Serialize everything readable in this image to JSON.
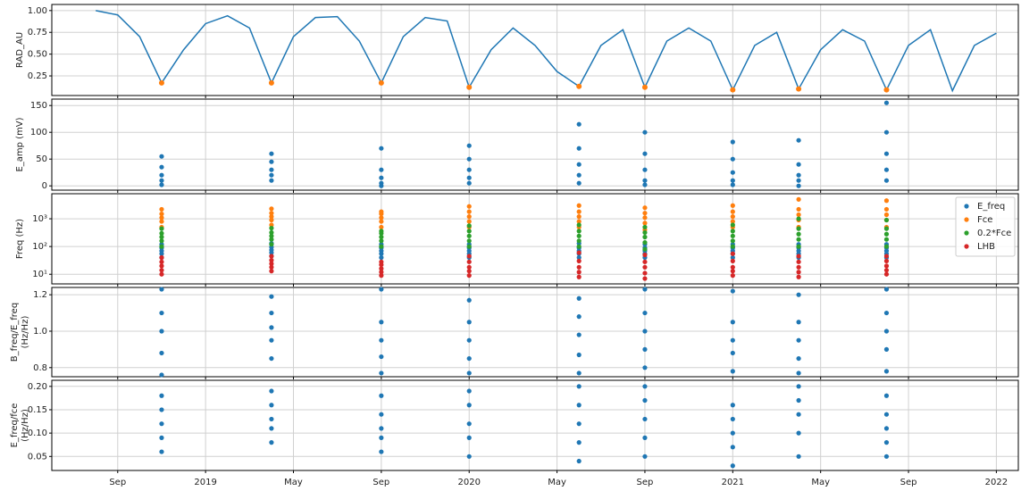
{
  "chart_data": [
    {
      "type": "line",
      "ylabel": [
        "RAD_AU"
      ],
      "x": [
        "2018-08",
        "2018-09",
        "2018-10",
        "2018-11",
        "2018-12",
        "2019-01",
        "2019-02",
        "2019-03",
        "2019-04",
        "2019-05",
        "2019-06",
        "2019-07",
        "2019-08",
        "2019-09",
        "2019-10",
        "2019-11",
        "2019-12",
        "2020-01",
        "2020-02",
        "2020-03",
        "2020-04",
        "2020-05",
        "2020-06",
        "2020-07",
        "2020-08",
        "2020-09",
        "2020-10",
        "2020-11",
        "2020-12",
        "2021-01",
        "2021-02",
        "2021-03",
        "2021-04",
        "2021-05",
        "2021-06",
        "2021-07",
        "2021-08",
        "2021-09",
        "2021-10",
        "2021-11",
        "2021-12",
        "2022-01"
      ],
      "series": [
        {
          "color": "#1f77b4",
          "values": [
            1.0,
            0.95,
            0.7,
            0.17,
            0.55,
            0.85,
            0.94,
            0.8,
            0.17,
            0.7,
            0.92,
            0.93,
            0.65,
            0.17,
            0.7,
            0.92,
            0.88,
            0.12,
            0.55,
            0.8,
            0.6,
            0.3,
            0.13,
            0.6,
            0.78,
            0.12,
            0.65,
            0.8,
            0.65,
            0.09,
            0.6,
            0.75,
            0.1,
            0.55,
            0.78,
            0.65,
            0.09,
            0.6,
            0.78,
            0.08,
            0.6,
            0.74
          ]
        }
      ],
      "highlights": {
        "color": "#ff7f0e",
        "x": [
          "2018-11",
          "2019-04",
          "2019-09",
          "2020-01",
          "2020-06",
          "2020-09",
          "2021-01",
          "2021-04",
          "2021-08"
        ],
        "values": [
          0.17,
          0.17,
          0.17,
          0.12,
          0.13,
          0.12,
          0.09,
          0.1,
          0.09
        ]
      },
      "ylim": [
        0.025,
        1.07
      ],
      "yticks": [
        0.25,
        {
          "value": 0.5,
          "label": "0.50"
        },
        0.75,
        {
          "value": 1.0,
          "label": "1.00"
        }
      ],
      "grid": true
    },
    {
      "type": "scatter",
      "ylabel": [
        "E_amp (mV)"
      ],
      "x": [
        "2018-11",
        "2018-11",
        "2018-11",
        "2018-11",
        "2018-11",
        "2019-04",
        "2019-04",
        "2019-04",
        "2019-04",
        "2019-04",
        "2019-09",
        "2019-09",
        "2019-09",
        "2019-09",
        "2019-09",
        "2020-01",
        "2020-01",
        "2020-01",
        "2020-01",
        "2020-01",
        "2020-06",
        "2020-06",
        "2020-06",
        "2020-06",
        "2020-06",
        "2020-09",
        "2020-09",
        "2020-09",
        "2020-09",
        "2020-09",
        "2021-01",
        "2021-01",
        "2021-01",
        "2021-01",
        "2021-01",
        "2021-04",
        "2021-04",
        "2021-04",
        "2021-04",
        "2021-04",
        "2021-08",
        "2021-08",
        "2021-08",
        "2021-08",
        "2021-08"
      ],
      "series": [
        {
          "color": "#1f77b4",
          "values": [
            2,
            10,
            20,
            35,
            55,
            10,
            20,
            30,
            45,
            60,
            0,
            5,
            15,
            30,
            70,
            5,
            15,
            30,
            50,
            75,
            5,
            20,
            40,
            70,
            115,
            2,
            10,
            30,
            60,
            100,
            2,
            10,
            25,
            50,
            82,
            0,
            10,
            20,
            40,
            85,
            10,
            30,
            60,
            100,
            155
          ]
        }
      ],
      "ylim": [
        -8,
        162
      ],
      "yticks": [
        0,
        50,
        100,
        150
      ],
      "grid": true
    },
    {
      "type": "scatter",
      "ylabel": [
        "Freq (Hz)"
      ],
      "yscale": "log",
      "legend": "upper right",
      "x": [
        "2018-11",
        "2018-11",
        "2018-11",
        "2018-11",
        "2018-11",
        "2019-04",
        "2019-04",
        "2019-04",
        "2019-04",
        "2019-04",
        "2019-09",
        "2019-09",
        "2019-09",
        "2019-09",
        "2019-09",
        "2020-01",
        "2020-01",
        "2020-01",
        "2020-01",
        "2020-01",
        "2020-06",
        "2020-06",
        "2020-06",
        "2020-06",
        "2020-06",
        "2020-09",
        "2020-09",
        "2020-09",
        "2020-09",
        "2020-09",
        "2021-01",
        "2021-01",
        "2021-01",
        "2021-01",
        "2021-01",
        "2021-04",
        "2021-04",
        "2021-04",
        "2021-04",
        "2021-04",
        "2021-08",
        "2021-08",
        "2021-08",
        "2021-08",
        "2021-08"
      ],
      "series": [
        {
          "name": "E_freq",
          "color": "#1f77b4",
          "values": [
            40,
            55,
            70,
            90,
            120,
            45,
            60,
            75,
            95,
            130,
            40,
            55,
            70,
            90,
            120,
            40,
            55,
            70,
            90,
            120,
            40,
            55,
            70,
            90,
            130,
            40,
            55,
            70,
            90,
            120,
            40,
            55,
            70,
            90,
            120,
            40,
            55,
            70,
            90,
            120,
            40,
            55,
            70,
            90,
            120
          ]
        },
        {
          "name": "Fce",
          "color": "#ff7f0e",
          "values": [
            500,
            800,
            1100,
            1500,
            2200,
            600,
            900,
            1200,
            1600,
            2300,
            500,
            800,
            1100,
            1500,
            1800,
            500,
            800,
            1200,
            1800,
            2800,
            500,
            800,
            1200,
            1800,
            3000,
            400,
            700,
            1100,
            1600,
            2500,
            500,
            800,
            1200,
            1800,
            3000,
            500,
            900,
            1400,
            2200,
            5000,
            500,
            900,
            1400,
            2200,
            4500
          ]
        },
        {
          "name": "0.2*Fce",
          "color": "#2ca02c",
          "values": [
            100,
            160,
            220,
            300,
            440,
            120,
            180,
            240,
            320,
            460,
            100,
            160,
            220,
            300,
            360,
            100,
            160,
            240,
            360,
            560,
            100,
            160,
            240,
            360,
            600,
            80,
            140,
            220,
            320,
            500,
            100,
            160,
            240,
            360,
            600,
            100,
            180,
            280,
            440,
            1000,
            100,
            180,
            280,
            440,
            900
          ]
        },
        {
          "name": "LHB",
          "color": "#d62728",
          "values": [
            10,
            14,
            20,
            28,
            40,
            13,
            18,
            24,
            32,
            45,
            9,
            12,
            16,
            22,
            28,
            9,
            13,
            18,
            28,
            45,
            8,
            12,
            18,
            30,
            60,
            7,
            11,
            18,
            28,
            50,
            9,
            13,
            18,
            30,
            55,
            8,
            12,
            18,
            28,
            45,
            10,
            14,
            20,
            30,
            45
          ]
        }
      ],
      "ylim": [
        4.5,
        8000
      ],
      "yticks": [
        {
          "value": 10,
          "label": "10¹"
        },
        {
          "value": 100,
          "label": "10²"
        },
        {
          "value": 1000,
          "label": "10³"
        }
      ],
      "grid": true
    },
    {
      "type": "scatter",
      "ylabel": [
        "B_freq/E_freq",
        "(Hz/Hz)"
      ],
      "x": [
        "2018-11",
        "2018-11",
        "2018-11",
        "2018-11",
        "2018-11",
        "2019-04",
        "2019-04",
        "2019-04",
        "2019-04",
        "2019-04",
        "2019-09",
        "2019-09",
        "2019-09",
        "2019-09",
        "2019-09",
        "2020-01",
        "2020-01",
        "2020-01",
        "2020-01",
        "2020-01",
        "2020-06",
        "2020-06",
        "2020-06",
        "2020-06",
        "2020-06",
        "2020-09",
        "2020-09",
        "2020-09",
        "2020-09",
        "2020-09",
        "2021-01",
        "2021-01",
        "2021-01",
        "2021-01",
        "2021-01",
        "2021-04",
        "2021-04",
        "2021-04",
        "2021-04",
        "2021-04",
        "2021-08",
        "2021-08",
        "2021-08",
        "2021-08",
        "2021-08"
      ],
      "series": [
        {
          "color": "#1f77b4",
          "values": [
            0.76,
            0.88,
            1.0,
            1.1,
            1.23,
            0.85,
            0.95,
            1.02,
            1.1,
            1.19,
            0.77,
            0.86,
            0.95,
            1.05,
            1.23,
            0.77,
            0.85,
            0.95,
            1.05,
            1.17,
            0.77,
            0.87,
            0.98,
            1.08,
            1.18,
            0.8,
            0.9,
            1.0,
            1.1,
            1.23,
            0.78,
            0.88,
            0.95,
            1.05,
            1.22,
            0.77,
            0.85,
            0.95,
            1.05,
            1.2,
            0.78,
            0.9,
            1.0,
            1.1,
            1.23
          ]
        }
      ],
      "ylim": [
        0.75,
        1.24
      ],
      "yticks": [
        0.8,
        {
          "value": 1.0,
          "label": "1.0"
        },
        1.2
      ],
      "grid": true
    },
    {
      "type": "scatter",
      "ylabel": [
        "E_freq/fce",
        "(Hz/Hz)"
      ],
      "x": [
        "2018-11",
        "2018-11",
        "2018-11",
        "2018-11",
        "2018-11",
        "2019-04",
        "2019-04",
        "2019-04",
        "2019-04",
        "2019-04",
        "2019-09",
        "2019-09",
        "2019-09",
        "2019-09",
        "2019-09",
        "2020-01",
        "2020-01",
        "2020-01",
        "2020-01",
        "2020-01",
        "2020-06",
        "2020-06",
        "2020-06",
        "2020-06",
        "2020-06",
        "2020-09",
        "2020-09",
        "2020-09",
        "2020-09",
        "2020-09",
        "2021-01",
        "2021-01",
        "2021-01",
        "2021-01",
        "2021-01",
        "2021-04",
        "2021-04",
        "2021-04",
        "2021-04",
        "2021-04",
        "2021-08",
        "2021-08",
        "2021-08",
        "2021-08",
        "2021-08"
      ],
      "series": [
        {
          "color": "#1f77b4",
          "values": [
            0.06,
            0.09,
            0.12,
            0.15,
            0.18,
            0.08,
            0.11,
            0.13,
            0.16,
            0.19,
            0.06,
            0.09,
            0.11,
            0.14,
            0.18,
            0.05,
            0.09,
            0.12,
            0.16,
            0.19,
            0.04,
            0.08,
            0.12,
            0.16,
            0.2,
            0.05,
            0.09,
            0.13,
            0.17,
            0.2,
            0.03,
            0.07,
            0.1,
            0.13,
            0.16,
            0.05,
            0.1,
            0.14,
            0.17,
            0.2,
            0.05,
            0.08,
            0.11,
            0.14,
            0.18
          ]
        }
      ],
      "ylim": [
        0.02,
        0.213
      ],
      "yticks": [
        0.05,
        {
          "value": 0.1,
          "label": "0.10"
        },
        0.15,
        {
          "value": 0.2,
          "label": "0.20"
        }
      ],
      "grid": true,
      "xlim": [
        "2018-06",
        "2022-02"
      ],
      "xticks": [
        {
          "value": "2018-09",
          "label": "Sep"
        },
        {
          "value": "2019-01",
          "label": "2019"
        },
        {
          "value": "2019-05",
          "label": "May"
        },
        {
          "value": "2019-09",
          "label": "Sep"
        },
        {
          "value": "2020-01",
          "label": "2020"
        },
        {
          "value": "2020-05",
          "label": "May"
        },
        {
          "value": "2020-09",
          "label": "Sep"
        },
        {
          "value": "2021-01",
          "label": "2021"
        },
        {
          "value": "2021-05",
          "label": "May"
        },
        {
          "value": "2021-09",
          "label": "Sep"
        },
        {
          "value": "2022-01",
          "label": "2022"
        }
      ]
    }
  ]
}
